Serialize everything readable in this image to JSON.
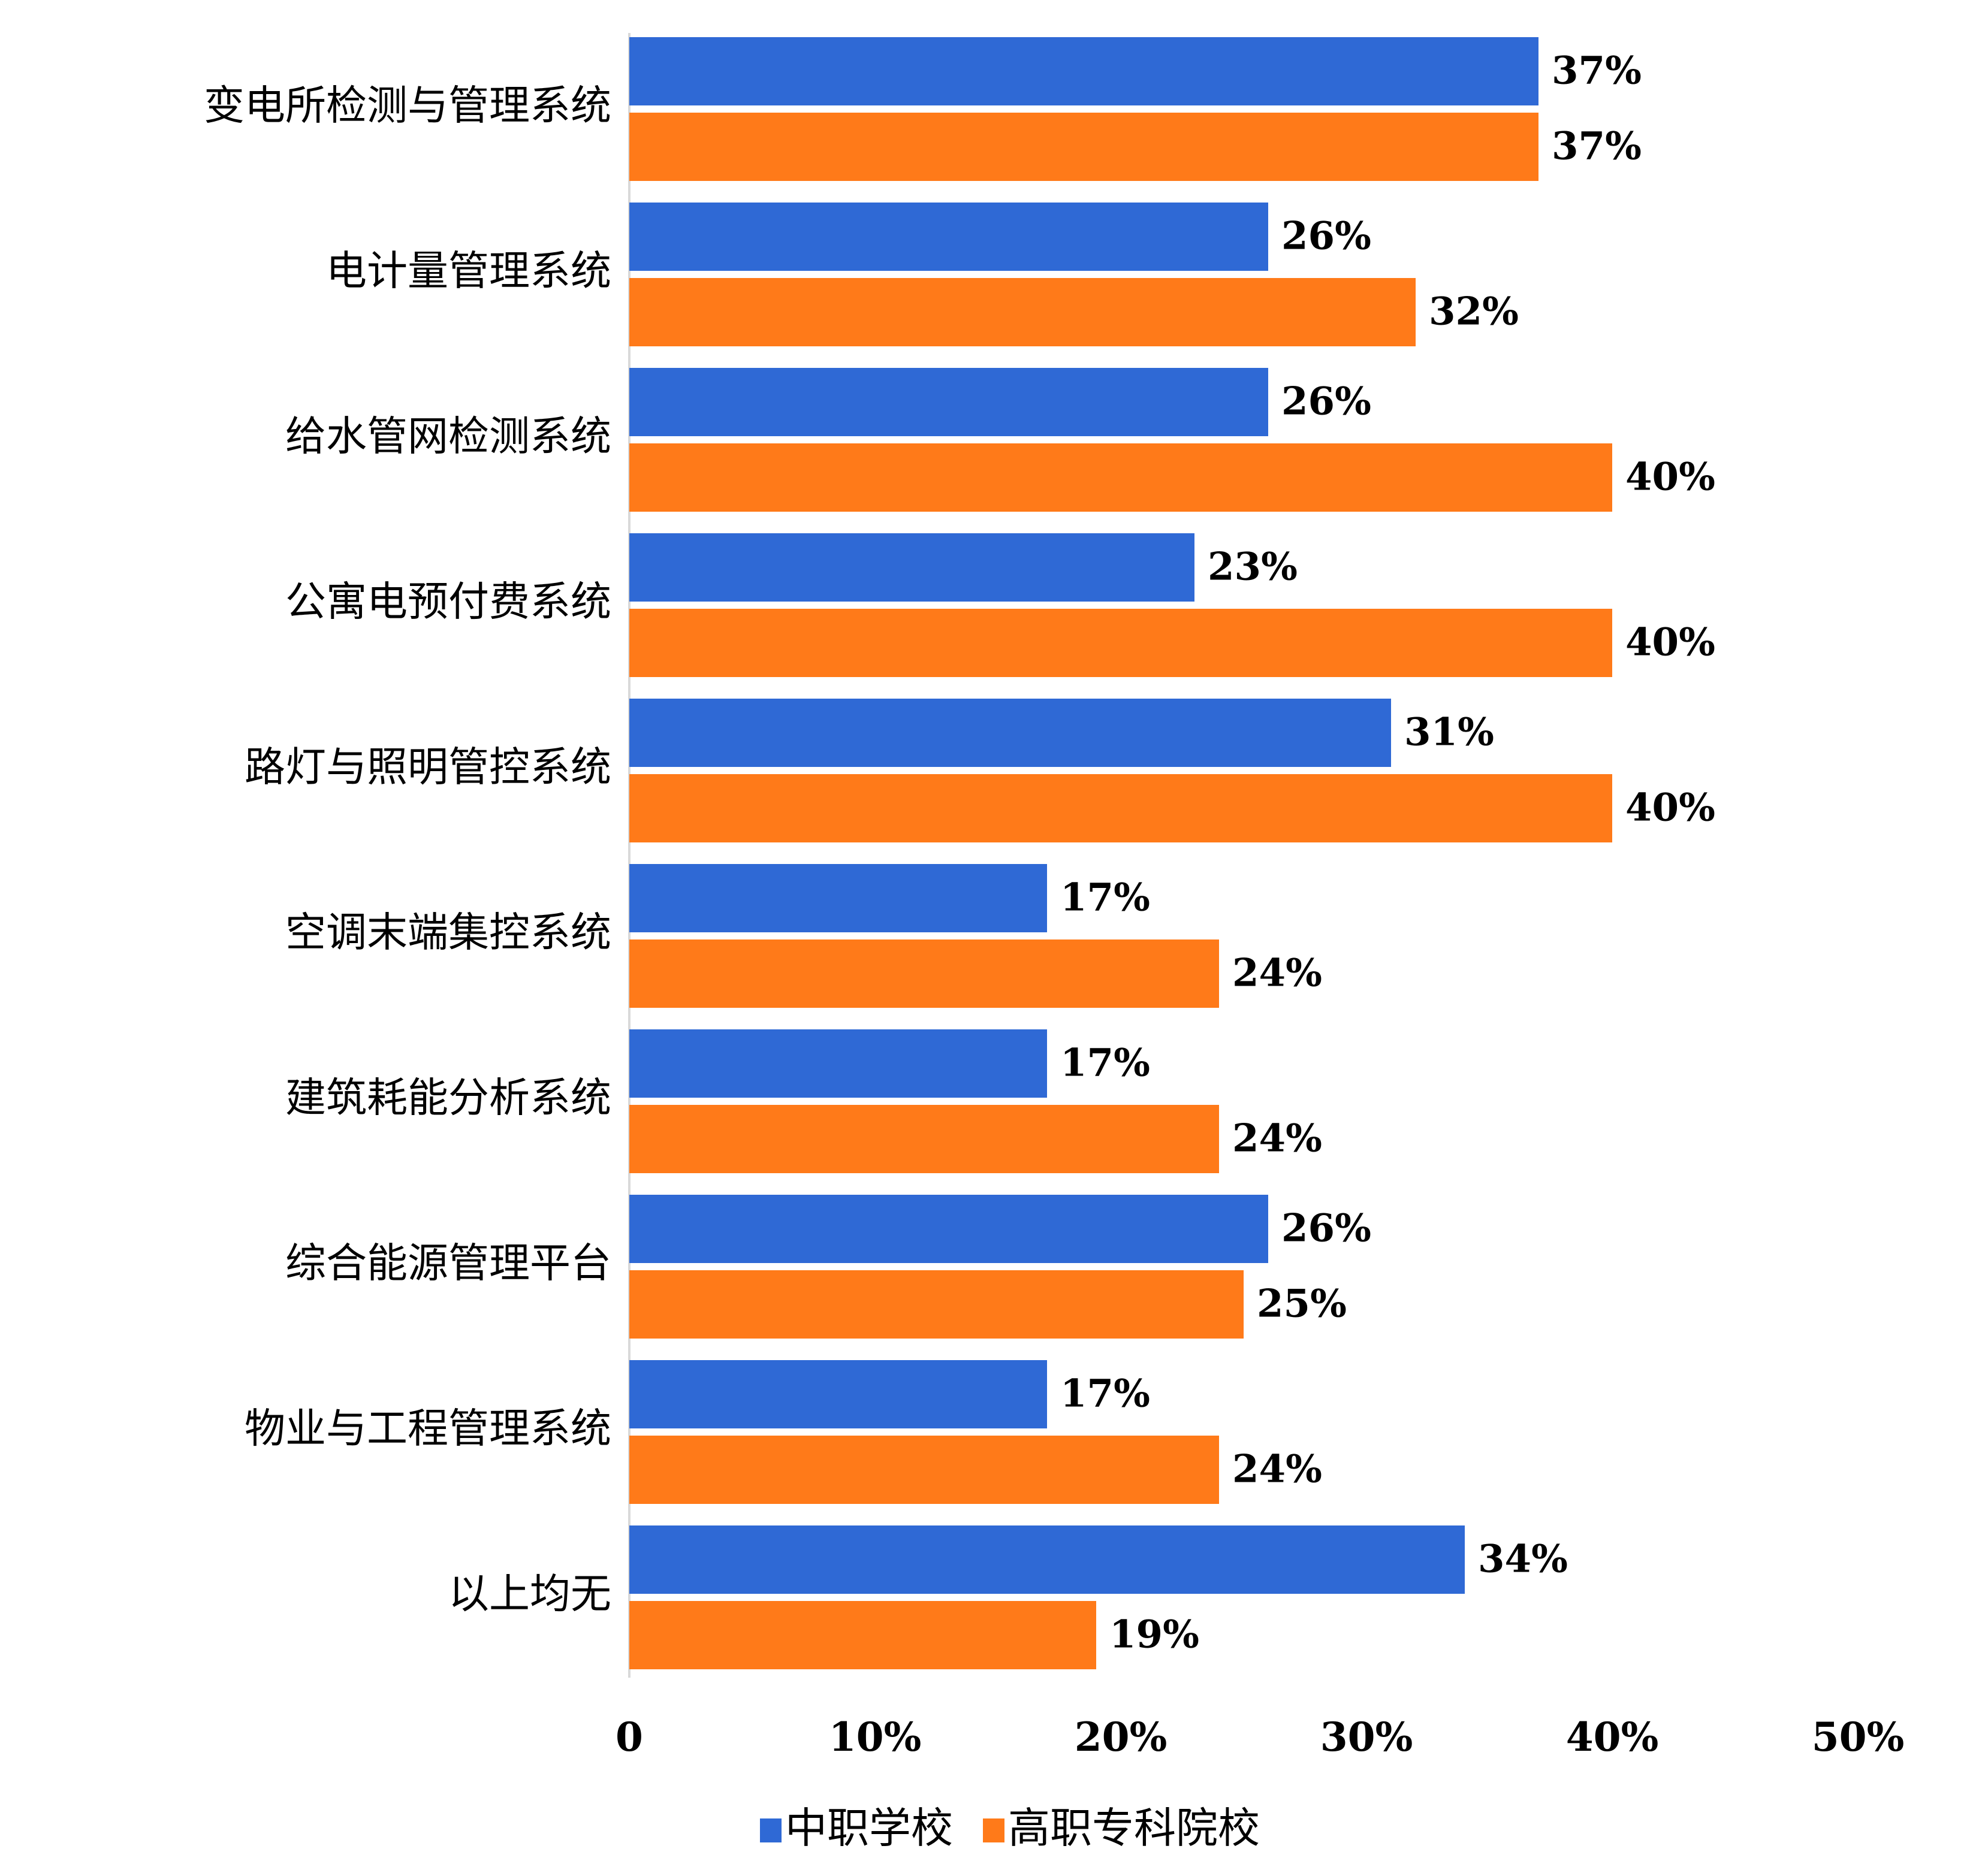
{
  "chart_data": {
    "type": "bar",
    "orientation": "horizontal",
    "categories": [
      "变电所检测与管理系统",
      "电计量管理系统",
      "给水管网检测系统",
      "公寓电预付费系统",
      "路灯与照明管控系统",
      "空调末端集控系统",
      "建筑耗能分析系统",
      "综合能源管理平台",
      "物业与工程管理系统",
      "以上均无"
    ],
    "series": [
      {
        "name": "中职学校",
        "color": "#2F69D5",
        "values": [
          37,
          26,
          26,
          23,
          31,
          17,
          17,
          26,
          17,
          34
        ],
        "value_labels": [
          "37%",
          "26%",
          "26%",
          "23%",
          "31%",
          "17%",
          "17%",
          "26%",
          "17%",
          "34%"
        ]
      },
      {
        "name": "高职专科院校",
        "color": "#FF7A19",
        "values": [
          37,
          32,
          40,
          40,
          40,
          24,
          24,
          25,
          24,
          19
        ],
        "value_labels": [
          "37%",
          "32%",
          "40%",
          "40%",
          "40%",
          "24%",
          "24%",
          "25%",
          "24%",
          "19%"
        ]
      }
    ],
    "xlim": [
      0,
      50
    ],
    "x_ticks": [
      0,
      10,
      20,
      30,
      40,
      50
    ],
    "x_tick_labels": [
      "0",
      "10%",
      "20%",
      "30%",
      "40%",
      "50%"
    ],
    "grid": false,
    "legend_position": "bottom-center",
    "title": "",
    "xlabel": "",
    "ylabel": ""
  }
}
